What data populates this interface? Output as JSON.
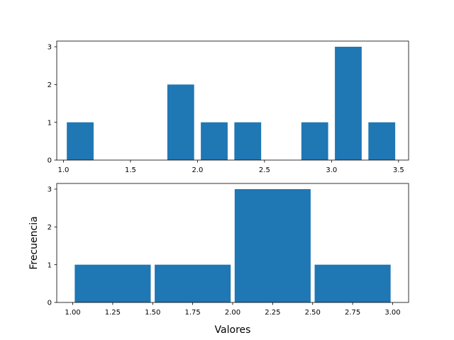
{
  "chart_data": [
    {
      "type": "bar",
      "title": "",
      "xlabel": "",
      "ylabel": "",
      "bars": [
        {
          "x0": 1.0,
          "x1": 1.25,
          "value": 1
        },
        {
          "x0": 1.25,
          "x1": 1.5,
          "value": 0
        },
        {
          "x0": 1.5,
          "x1": 1.75,
          "value": 0
        },
        {
          "x0": 1.75,
          "x1": 2.0,
          "value": 2
        },
        {
          "x0": 2.0,
          "x1": 2.25,
          "value": 1
        },
        {
          "x0": 2.25,
          "x1": 2.5,
          "value": 1
        },
        {
          "x0": 2.5,
          "x1": 2.75,
          "value": 0
        },
        {
          "x0": 2.75,
          "x1": 3.0,
          "value": 1
        },
        {
          "x0": 3.0,
          "x1": 3.25,
          "value": 3
        },
        {
          "x0": 3.25,
          "x1": 3.5,
          "value": 1
        }
      ],
      "xlim": [
        0.95,
        3.575
      ],
      "ylim": [
        0,
        3.15
      ],
      "xticks": [
        1.0,
        1.5,
        2.0,
        2.5,
        3.0,
        3.5
      ],
      "xtick_labels": [
        "1.0",
        "1.5",
        "2.0",
        "2.5",
        "3.0",
        "3.5"
      ],
      "yticks": [
        0,
        1,
        2,
        3
      ],
      "ytick_labels": [
        "0",
        "1",
        "2",
        "3"
      ],
      "color": "#1f77b4",
      "bar_width_fraction": 0.8,
      "grid": false
    },
    {
      "type": "bar",
      "title": "",
      "xlabel": "Valores",
      "ylabel": "Frecuencia",
      "bars": [
        {
          "x0": 1.0,
          "x1": 1.5,
          "value": 1
        },
        {
          "x0": 1.5,
          "x1": 2.0,
          "value": 1
        },
        {
          "x0": 2.0,
          "x1": 2.5,
          "value": 3
        },
        {
          "x0": 2.5,
          "x1": 3.0,
          "value": 1
        }
      ],
      "xlim": [
        0.9,
        3.1
      ],
      "ylim": [
        0,
        3.15
      ],
      "xticks": [
        1.0,
        1.25,
        1.5,
        1.75,
        2.0,
        2.25,
        2.5,
        2.75,
        3.0
      ],
      "xtick_labels": [
        "1.00",
        "1.25",
        "1.50",
        "1.75",
        "2.00",
        "2.25",
        "2.50",
        "2.75",
        "3.00"
      ],
      "yticks": [
        0,
        1,
        2,
        3
      ],
      "ytick_labels": [
        "0",
        "1",
        "2",
        "3"
      ],
      "color": "#1f77b4",
      "bar_width_fraction": 0.95,
      "grid": false
    }
  ]
}
